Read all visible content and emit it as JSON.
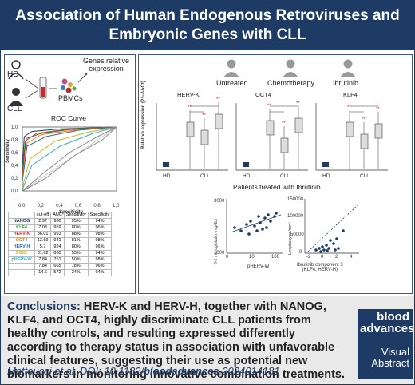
{
  "header": {
    "title_line1": "Association of Human Endogenous Retroviruses and",
    "title_line2": "Embryonic Genes with CLL"
  },
  "left": {
    "hd": "HD",
    "cll": "CLL",
    "pbmcs": "PBMCs",
    "genes_line1": "Genes relative",
    "genes_line2": "expression",
    "roc_title": "ROC Curve",
    "sensitivity": "Sensitivity",
    "specificity": "Specificity",
    "yticks": [
      "1,0",
      "0,8",
      "0,6",
      "0,4",
      "0,2",
      "0,0"
    ],
    "xticks": [
      "0,0",
      "0,2",
      "0,4",
      "0,6",
      "0,8",
      "1,0"
    ],
    "table": {
      "headers": [
        "",
        "cut-off",
        "AUC",
        "Sensitivity",
        "Specificity"
      ],
      "rows": [
        {
          "name": "NANOG",
          "color": "#1d3b64",
          "cells": [
            "2.97",
            "980",
            "95%",
            "94%"
          ]
        },
        {
          "name": "KLF4",
          "color": "#2f8a3a",
          "cells": [
            "7.03",
            "959",
            "80%",
            "96%"
          ]
        },
        {
          "name": "HERV-K",
          "color": "#c03030",
          "cells": [
            "36.01",
            "953",
            "88%",
            "98%"
          ]
        },
        {
          "name": "OCT4",
          "color": "#e08a20",
          "cells": [
            "13.69",
            "941",
            "81%",
            "98%"
          ]
        },
        {
          "name": "HERV-H",
          "color": "#2a6fb0",
          "cells": [
            "5.7",
            "924",
            "80%",
            "96%"
          ]
        },
        {
          "name": "SOX2",
          "color": "#d0b020",
          "cells": [
            "31.62",
            "860",
            "53%",
            "94%"
          ]
        },
        {
          "name": "pHERV-W",
          "color": "#40a8c8",
          "cells": [
            "7.84",
            "751",
            "50%",
            "98%"
          ]
        },
        {
          "name": "",
          "color": "#888888",
          "cells": [
            "7.84",
            "665",
            "18%",
            "96%"
          ]
        },
        {
          "name": "",
          "color": "#888888",
          "cells": [
            "14.6",
            "572",
            "24%",
            "94%"
          ]
        }
      ]
    }
  },
  "right": {
    "groups": [
      "Untreated",
      "Chemotherapy",
      "Ibrutinib"
    ],
    "ylabel": "Relative expression (2^-ΔΔCt)",
    "panels": [
      "HERV-K",
      "OCT4",
      "KLF4"
    ],
    "xlabels": [
      "HD",
      "CLL"
    ],
    "ibr_title": "Patients treated with Ibrutinib",
    "scatter1_y": "β-2 microglobulin (mg/dL)",
    "scatter1_x": "pHERV-W",
    "scatter2_y": "Lymphocytes/mm³",
    "scatter2_x1": "Ibrutinib component 3",
    "scatter2_x2": "(KLF4, HERV-H)",
    "s1_yticks": [
      "3000",
      "1000"
    ],
    "s1_xticks": [
      "0",
      "10",
      "100"
    ],
    "s2_yticks": [
      "150000",
      "100000",
      "50000",
      "0"
    ],
    "s2_xticks": [
      "-2",
      "0",
      "2",
      "4"
    ]
  },
  "conclusions": {
    "label": "Conclusions:",
    "text": " HERV-K and HERV-H, together with NANOG, KLF4, and OCT4, highly discriminate CLL patients from healthy controls, and resulting expressed differently according to therapy status in association with unfavorable clinical features, suggesting their use as potential new biomarkers in monitoring innovative combination treatments.",
    "cite_prefix": "Matteucci et al. DOI: 10.1182/",
    "cite_bold": "bloodadvances",
    "cite_suffix": ".2024014181"
  },
  "badge": {
    "line1": "blood",
    "line2": "advances",
    "line3": "Visual",
    "line4": "Abstract"
  }
}
